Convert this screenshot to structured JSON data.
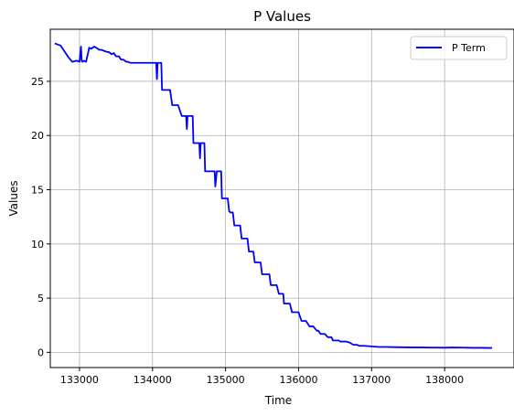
{
  "chart_data": {
    "type": "line",
    "title": "P Values",
    "xlabel": "Time",
    "ylabel": "Values",
    "xlim": [
      132600,
      138950
    ],
    "ylim": [
      -1.4,
      29.8
    ],
    "xticks": [
      133000,
      134000,
      135000,
      136000,
      137000,
      138000
    ],
    "yticks": [
      0,
      5,
      10,
      15,
      20,
      25
    ],
    "grid": true,
    "legend_position": "upper-right",
    "series": [
      {
        "name": "P Term",
        "color": "#0000ff",
        "x": [
          132660,
          132740,
          132800,
          132850,
          132900,
          132960,
          133000,
          133020,
          133030,
          133040,
          133060,
          133090,
          133130,
          133130,
          133160,
          133200,
          133230,
          133270,
          133300,
          133340,
          133380,
          133400,
          133440,
          133470,
          133500,
          133540,
          133570,
          133600,
          133640,
          133660,
          133700,
          133740,
          133760,
          133800,
          133840,
          133870,
          133900,
          133950,
          133990,
          134000,
          134040,
          134050,
          134060,
          134070,
          134080,
          134100,
          134120,
          134130,
          134180,
          134200,
          134240,
          134270,
          134300,
          134330,
          134350,
          134400,
          134420,
          134460,
          134470,
          134480,
          134500,
          134550,
          134560,
          134590,
          134620,
          134640,
          134650,
          134660,
          134670,
          134690,
          134710,
          134720,
          134740,
          134760,
          134800,
          134830,
          134850,
          134860,
          134880,
          134900,
          134920,
          134940,
          134950,
          134960,
          134970,
          135010,
          135030,
          135050,
          135070,
          135100,
          135120,
          135140,
          135170,
          135200,
          135220,
          135240,
          135270,
          135300,
          135320,
          135360,
          135380,
          135400,
          135430,
          135460,
          135480,
          135500,
          135540,
          135570,
          135600,
          135620,
          135650,
          135670,
          135700,
          135730,
          135760,
          135790,
          135800,
          135850,
          135880,
          135910,
          135930,
          135960,
          136000,
          136040,
          136070,
          136100,
          136150,
          136160,
          136200,
          136250,
          136270,
          136300,
          136350,
          136360,
          136400,
          136450,
          136470,
          136500,
          136550,
          136570,
          136600,
          136650,
          136700,
          136750,
          136800,
          136830,
          136850,
          136900,
          137000,
          137100,
          137200,
          137300,
          137500,
          137700,
          137800,
          137900,
          138000,
          138100,
          138200,
          138300,
          138400,
          138500,
          138600,
          138650
        ],
        "y": [
          28.5,
          28.3,
          27.7,
          27.2,
          26.8,
          26.9,
          26.8,
          28.2,
          26.9,
          26.8,
          26.9,
          26.8,
          28.0,
          28.1,
          28.0,
          28.2,
          28.1,
          27.9,
          27.9,
          27.8,
          27.7,
          27.7,
          27.5,
          27.6,
          27.3,
          27.3,
          27.0,
          27.0,
          26.8,
          26.8,
          26.7,
          26.7,
          26.7,
          26.7,
          26.7,
          26.7,
          26.7,
          26.7,
          26.7,
          26.7,
          26.7,
          26.7,
          25.2,
          26.7,
          26.7,
          26.7,
          26.7,
          24.2,
          24.2,
          24.2,
          24.2,
          22.8,
          22.8,
          22.8,
          22.8,
          21.8,
          21.8,
          21.8,
          20.6,
          21.8,
          21.8,
          21.8,
          19.3,
          19.3,
          19.3,
          19.3,
          17.9,
          19.3,
          19.3,
          19.3,
          19.3,
          16.7,
          16.7,
          16.7,
          16.7,
          16.7,
          16.7,
          15.3,
          16.7,
          16.7,
          16.7,
          16.7,
          14.2,
          14.2,
          14.2,
          14.2,
          14.2,
          13.0,
          12.9,
          12.9,
          11.7,
          11.7,
          11.7,
          11.7,
          10.5,
          10.5,
          10.5,
          10.5,
          9.3,
          9.3,
          9.3,
          8.3,
          8.3,
          8.3,
          8.3,
          7.2,
          7.2,
          7.2,
          7.2,
          6.2,
          6.2,
          6.2,
          6.2,
          5.4,
          5.4,
          5.4,
          4.5,
          4.5,
          4.5,
          3.7,
          3.7,
          3.7,
          3.7,
          2.9,
          2.9,
          2.9,
          2.4,
          2.4,
          2.4,
          2.0,
          2.0,
          1.7,
          1.7,
          1.7,
          1.4,
          1.4,
          1.1,
          1.1,
          1.1,
          1.0,
          1.0,
          1.0,
          0.9,
          0.7,
          0.7,
          0.6,
          0.6,
          0.6,
          0.55,
          0.5,
          0.5,
          0.48,
          0.46,
          0.45,
          0.44,
          0.44,
          0.43,
          0.45,
          0.44,
          0.43,
          0.42,
          0.42,
          0.41,
          0.41
        ]
      }
    ]
  }
}
